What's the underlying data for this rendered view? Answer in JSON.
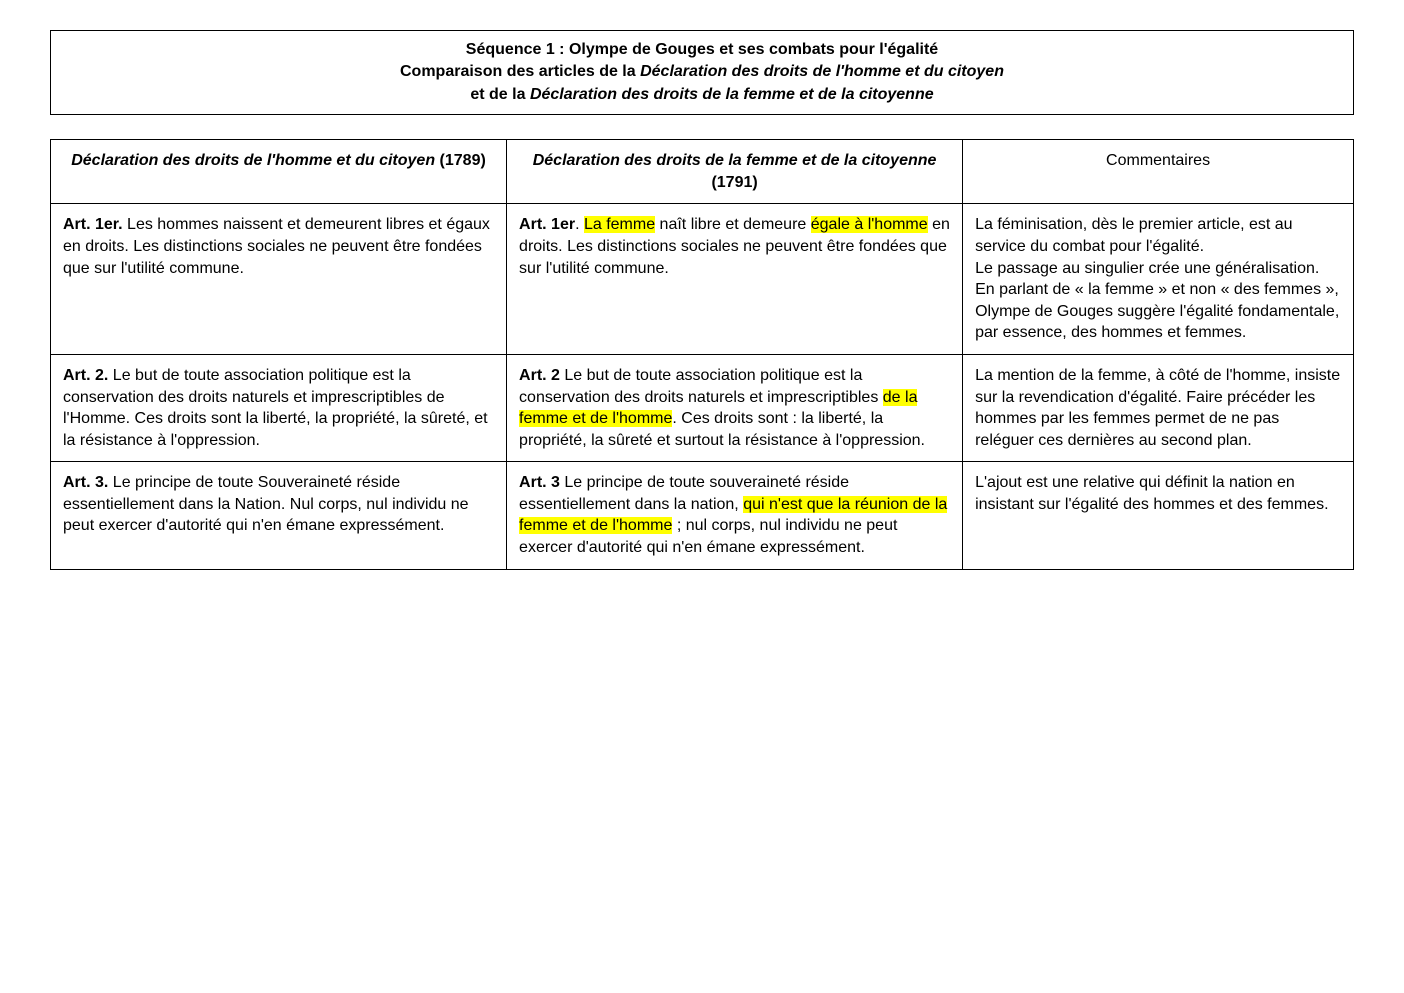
{
  "colors": {
    "highlight": "#ffff00",
    "text": "#000000",
    "border": "#000000",
    "background": "#ffffff"
  },
  "typography": {
    "font_family": "Arial",
    "body_fontsize_pt": 12,
    "header_fontsize_pt": 12,
    "header_weight": "bold"
  },
  "header": {
    "line1_plain": "Séquence 1 : Olympe de Gouges et ses combats pour l'égalité",
    "line2_prefix": "Comparaison des articles de la ",
    "line2_italic": "Déclaration des droits de l'homme et du citoyen",
    "line3_prefix": "et de la ",
    "line3_italic": "Déclaration des droits de la femme et de la citoyenne"
  },
  "table": {
    "columns": [
      {
        "title_italic": "Déclaration des droits de l'homme et du citoyen",
        "title_year": " (1789)"
      },
      {
        "title_italic": "Déclaration des droits de la femme et de la citoyenne",
        "title_year": " (1791)"
      },
      {
        "title_plain": "Commentaires"
      }
    ],
    "rows": [
      {
        "left": {
          "art": "Art. 1er.",
          "text": " Les hommes naissent et demeurent libres et égaux en droits. Les distinctions sociales ne peuvent être fondées que sur l'utilité commune."
        },
        "middle": {
          "segments": [
            {
              "t": "Art. 1er",
              "style": "bold"
            },
            {
              "t": ". ",
              "style": "plain"
            },
            {
              "t": "La femme",
              "style": "hl"
            },
            {
              "t": " naît libre et demeure ",
              "style": "plain"
            },
            {
              "t": "égale à l'homme",
              "style": "hl"
            },
            {
              "t": " en droits. Les distinctions sociales ne peuvent être fondées que sur l'utilité commune.",
              "style": "plain"
            }
          ]
        },
        "right": {
          "text": "La féminisation, dès le premier article, est au service du combat pour l'égalité.\nLe passage au singulier crée une généralisation. En parlant de « la femme » et non « des femmes », Olympe de Gouges suggère l'égalité fondamentale, par essence, des hommes et femmes."
        }
      },
      {
        "left": {
          "art": "Art. 2.",
          "text": " Le but de toute association politique est la conservation des droits naturels et imprescriptibles de l'Homme. Ces droits sont la liberté, la propriété, la sûreté, et la résistance à l'oppression."
        },
        "middle": {
          "segments": [
            {
              "t": "Art. 2",
              "style": "bold"
            },
            {
              "t": " Le but de toute association politique est la conservation des droits naturels et imprescriptibles ",
              "style": "plain"
            },
            {
              "t": "de la femme et de l'homme",
              "style": "hl"
            },
            {
              "t": ". Ces droits sont : la liberté, la propriété, la sûreté et surtout la résistance à l'oppression.",
              "style": "plain"
            }
          ]
        },
        "right": {
          "text": "La mention de la femme, à côté de l'homme, insiste sur la revendication d'égalité. Faire précéder les hommes par les femmes permet de ne pas reléguer ces dernières au second plan."
        }
      },
      {
        "left": {
          "art": "Art. 3.",
          "text": " Le principe de toute Souveraineté réside essentiellement dans la Nation. Nul corps, nul individu ne peut exercer d'autorité qui n'en émane expressément."
        },
        "middle": {
          "segments": [
            {
              "t": "Art. 3",
              "style": "bold"
            },
            {
              "t": " Le principe de toute souveraineté réside essentiellement dans la nation, ",
              "style": "plain"
            },
            {
              "t": "qui n'est que la réunion de la femme et de l'homme",
              "style": "hl"
            },
            {
              "t": " ; nul corps, nul individu ne peut exercer d'autorité qui n'en émane expressément.",
              "style": "plain"
            }
          ]
        },
        "right": {
          "text": "L'ajout est une relative qui définit la nation en insistant sur l'égalité des hommes et des femmes."
        }
      }
    ]
  }
}
